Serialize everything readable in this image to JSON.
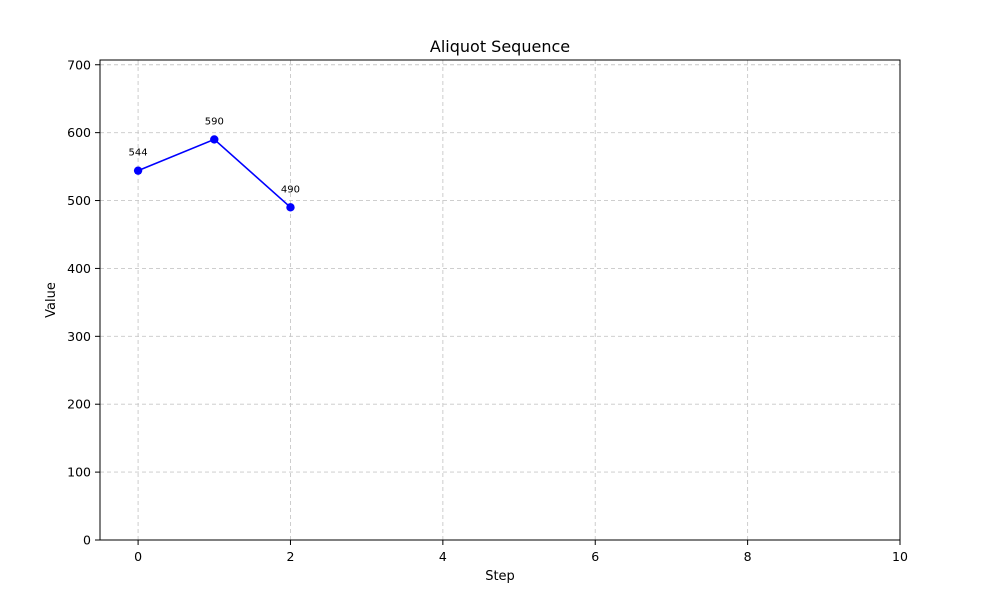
{
  "chart_data": {
    "type": "line",
    "title": "Aliquot Sequence",
    "xlabel": "Step",
    "ylabel": "Value",
    "x": [
      0,
      1,
      2
    ],
    "series": [
      {
        "values": [
          544,
          590,
          490
        ],
        "color": "#0000ff",
        "marker": "circle"
      }
    ],
    "data_labels": [
      "544",
      "590",
      "490"
    ],
    "xlim": [
      -0.5,
      10
    ],
    "ylim": [
      0,
      707
    ],
    "xticks": [
      0,
      2,
      4,
      6,
      8,
      10
    ],
    "yticks": [
      0,
      100,
      200,
      300,
      400,
      500,
      600,
      700
    ],
    "grid": true
  }
}
